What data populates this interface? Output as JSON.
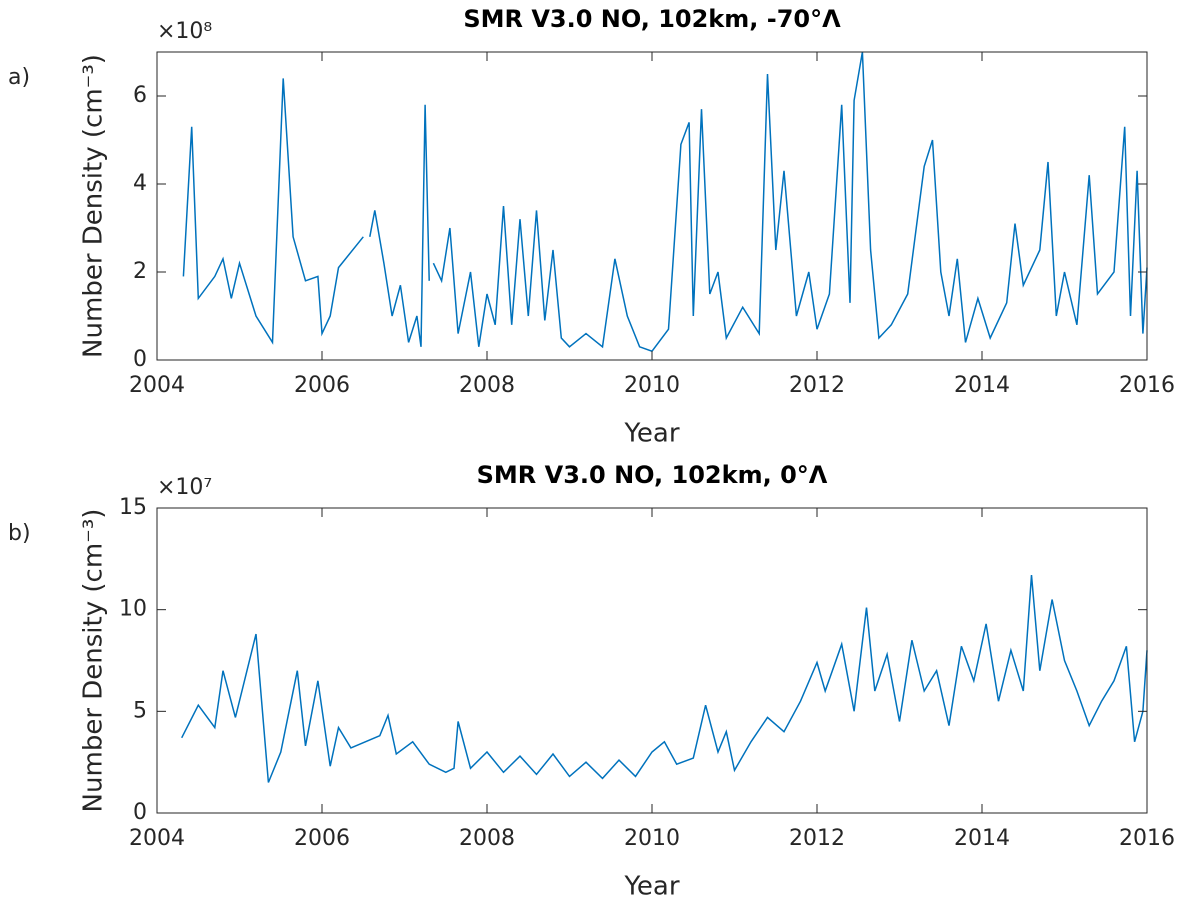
{
  "chart_data": [
    {
      "type": "line",
      "panel_label": "a)",
      "title": "SMR V3.0 NO, 102km, -70°Λ",
      "xlabel": "Year",
      "ylabel": "Number Density (cm⁻³)",
      "y_multiplier": "×10⁸",
      "xlim": [
        2004,
        2016
      ],
      "xticks": [
        2004,
        2006,
        2008,
        2010,
        2012,
        2014,
        2016
      ],
      "ylim": [
        0,
        7
      ],
      "yticks": [
        0,
        2,
        4,
        6
      ],
      "x": [
        2004.32,
        2004.42,
        2004.5,
        2004.7,
        2004.8,
        2004.9,
        2005.0,
        2005.2,
        2005.4,
        2005.53,
        2005.65,
        2005.8,
        2005.95,
        2006.0,
        2006.1,
        2006.2,
        2006.5,
        2006.54,
        2006.58,
        2006.64,
        2006.75,
        2006.85,
        2006.95,
        2007.05,
        2007.15,
        2007.2,
        2007.25,
        2007.3,
        2007.32,
        2007.35,
        2007.45,
        2007.55,
        2007.65,
        2007.8,
        2007.9,
        2008.0,
        2008.1,
        2008.2,
        2008.3,
        2008.4,
        2008.5,
        2008.6,
        2008.7,
        2008.8,
        2008.9,
        2009.0,
        2009.2,
        2009.4,
        2009.55,
        2009.7,
        2009.85,
        2010.0,
        2010.2,
        2010.35,
        2010.45,
        2010.5,
        2010.6,
        2010.7,
        2010.8,
        2010.9,
        2011.1,
        2011.3,
        2011.4,
        2011.5,
        2011.6,
        2011.75,
        2011.9,
        2012.0,
        2012.15,
        2012.3,
        2012.4,
        2012.45,
        2012.55,
        2012.65,
        2012.75,
        2012.9,
        2013.1,
        2013.3,
        2013.4,
        2013.5,
        2013.6,
        2013.7,
        2013.8,
        2013.95,
        2014.1,
        2014.3,
        2014.4,
        2014.5,
        2014.7,
        2014.8,
        2014.9,
        2015.0,
        2015.15,
        2015.3,
        2015.4,
        2015.6,
        2015.73,
        2015.8,
        2015.88,
        2015.95,
        2016.0
      ],
      "series": [
        {
          "color": "#0072bd",
          "values": [
            1.9,
            5.3,
            1.4,
            1.9,
            2.3,
            1.4,
            2.2,
            1.0,
            0.4,
            6.4,
            2.8,
            1.8,
            1.9,
            0.6,
            1.0,
            2.1,
            2.8,
            null,
            2.8,
            3.4,
            2.2,
            1.0,
            1.7,
            0.4,
            1.0,
            0.3,
            5.8,
            1.8,
            null,
            2.2,
            1.8,
            3.0,
            0.6,
            2.0,
            0.3,
            1.5,
            0.8,
            3.5,
            0.8,
            3.2,
            1.0,
            3.4,
            0.9,
            2.5,
            0.5,
            0.3,
            0.6,
            0.3,
            2.3,
            1.0,
            0.3,
            0.2,
            0.7,
            4.9,
            5.4,
            1.0,
            5.7,
            1.5,
            2.0,
            0.5,
            1.2,
            0.6,
            6.5,
            2.5,
            4.3,
            1.0,
            2.0,
            0.7,
            1.5,
            5.8,
            1.3,
            5.9,
            7.0,
            2.5,
            0.5,
            0.8,
            1.5,
            4.4,
            5.0,
            2.0,
            1.0,
            2.3,
            0.4,
            1.4,
            0.5,
            1.3,
            3.1,
            1.7,
            2.5,
            4.5,
            1.0,
            2.0,
            0.8,
            4.2,
            1.5,
            2.0,
            5.3,
            1.0,
            4.3,
            0.6,
            2.1
          ]
        }
      ]
    },
    {
      "type": "line",
      "panel_label": "b)",
      "title": "SMR V3.0 NO, 102km, 0°Λ",
      "xlabel": "Year",
      "ylabel": "Number Density (cm⁻³)",
      "y_multiplier": "×10⁷",
      "xlim": [
        2004,
        2016
      ],
      "xticks": [
        2004,
        2006,
        2008,
        2010,
        2012,
        2014,
        2016
      ],
      "ylim": [
        0,
        15
      ],
      "yticks": [
        0,
        5,
        10,
        15
      ],
      "x": [
        2004.3,
        2004.5,
        2004.7,
        2004.8,
        2004.95,
        2005.2,
        2005.35,
        2005.5,
        2005.7,
        2005.8,
        2005.95,
        2006.1,
        2006.2,
        2006.35,
        2006.7,
        2006.8,
        2006.9,
        2007.1,
        2007.3,
        2007.5,
        2007.6,
        2007.65,
        2007.8,
        2008.0,
        2008.2,
        2008.4,
        2008.6,
        2008.8,
        2009.0,
        2009.2,
        2009.4,
        2009.6,
        2009.8,
        2010.0,
        2010.15,
        2010.3,
        2010.5,
        2010.65,
        2010.8,
        2010.9,
        2011.0,
        2011.2,
        2011.4,
        2011.6,
        2011.8,
        2012.0,
        2012.1,
        2012.3,
        2012.45,
        2012.6,
        2012.7,
        2012.85,
        2013.0,
        2013.15,
        2013.3,
        2013.45,
        2013.6,
        2013.75,
        2013.9,
        2014.05,
        2014.2,
        2014.35,
        2014.5,
        2014.6,
        2014.7,
        2014.85,
        2015.0,
        2015.15,
        2015.3,
        2015.45,
        2015.6,
        2015.75,
        2015.85,
        2015.95,
        2016.0
      ],
      "series": [
        {
          "color": "#0072bd",
          "values": [
            3.7,
            5.3,
            4.2,
            7.0,
            4.7,
            8.8,
            1.5,
            3.0,
            7.0,
            3.3,
            6.5,
            2.3,
            4.2,
            3.2,
            3.8,
            4.8,
            2.9,
            3.5,
            2.4,
            2.0,
            2.2,
            4.5,
            2.2,
            3.0,
            2.0,
            2.8,
            1.9,
            2.9,
            1.8,
            2.5,
            1.7,
            2.6,
            1.8,
            3.0,
            3.5,
            2.4,
            2.7,
            5.3,
            3.0,
            4.0,
            2.1,
            3.5,
            4.7,
            4.0,
            5.5,
            7.4,
            6.0,
            8.3,
            5.0,
            10.1,
            6.0,
            7.8,
            4.5,
            8.5,
            6.0,
            7.0,
            4.3,
            8.2,
            6.5,
            9.3,
            5.5,
            8.0,
            6.0,
            11.7,
            7.0,
            10.5,
            7.5,
            6.0,
            4.3,
            5.5,
            6.5,
            8.2,
            3.5,
            5.0,
            8.0
          ]
        }
      ]
    }
  ]
}
